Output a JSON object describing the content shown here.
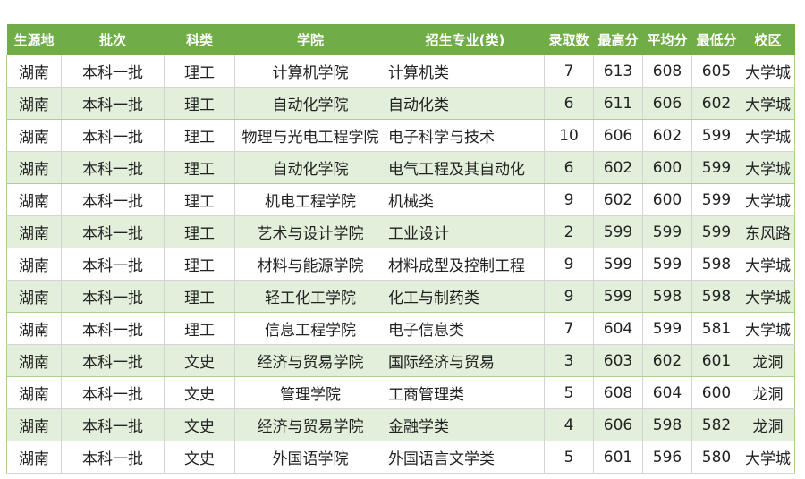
{
  "header_color": "#70ad47",
  "alt_row_color": "#e2efda",
  "columns": [
    "生源地",
    "批次",
    "科类",
    "学院",
    "招生专业(类)",
    "录取数",
    "最高分",
    "平均分",
    "最低分",
    "校区"
  ],
  "rows": [
    [
      "湖南",
      "本科一批",
      "理工",
      "计算机学院",
      "计算机类",
      "7",
      "613",
      "608",
      "605",
      "大学城"
    ],
    [
      "湖南",
      "本科一批",
      "理工",
      "自动化学院",
      "自动化类",
      "6",
      "611",
      "606",
      "602",
      "大学城"
    ],
    [
      "湖南",
      "本科一批",
      "理工",
      "物理与光电工程学院",
      "电子科学与技术",
      "10",
      "606",
      "602",
      "599",
      "大学城"
    ],
    [
      "湖南",
      "本科一批",
      "理工",
      "自动化学院",
      "电气工程及其自动化",
      "6",
      "602",
      "600",
      "599",
      "大学城"
    ],
    [
      "湖南",
      "本科一批",
      "理工",
      "机电工程学院",
      "机械类",
      "9",
      "602",
      "600",
      "599",
      "大学城"
    ],
    [
      "湖南",
      "本科一批",
      "理工",
      "艺术与设计学院",
      "工业设计",
      "2",
      "599",
      "599",
      "599",
      "东风路"
    ],
    [
      "湖南",
      "本科一批",
      "理工",
      "材料与能源学院",
      "材料成型及控制工程",
      "9",
      "599",
      "599",
      "598",
      "大学城"
    ],
    [
      "湖南",
      "本科一批",
      "理工",
      "轻工化工学院",
      "化工与制药类",
      "9",
      "599",
      "598",
      "598",
      "大学城"
    ],
    [
      "湖南",
      "本科一批",
      "理工",
      "信息工程学院",
      "电子信息类",
      "7",
      "604",
      "599",
      "581",
      "大学城"
    ],
    [
      "湖南",
      "本科一批",
      "文史",
      "经济与贸易学院",
      "国际经济与贸易",
      "3",
      "603",
      "602",
      "601",
      "龙洞"
    ],
    [
      "湖南",
      "本科一批",
      "文史",
      "管理学院",
      "工商管理类",
      "5",
      "608",
      "604",
      "600",
      "龙洞"
    ],
    [
      "湖南",
      "本科一批",
      "文史",
      "经济与贸易学院",
      "金融学类",
      "4",
      "606",
      "598",
      "582",
      "龙洞"
    ],
    [
      "湖南",
      "本科一批",
      "文史",
      "外国语学院",
      "外国语言文学类",
      "5",
      "601",
      "596",
      "580",
      "大学城"
    ]
  ]
}
